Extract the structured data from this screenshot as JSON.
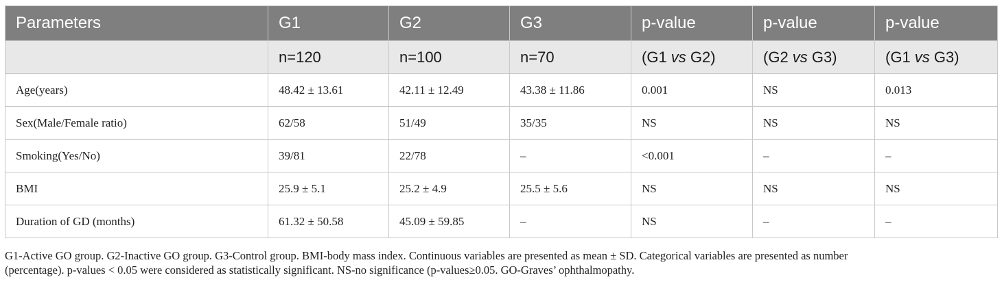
{
  "table": {
    "header_row1": [
      "Parameters",
      "G1",
      "G2",
      "G3",
      "p-value",
      "p-value",
      "p-value"
    ],
    "header_row2": [
      {
        "pre": "",
        "vs": "",
        "post": ""
      },
      {
        "pre": "n=120",
        "vs": "",
        "post": ""
      },
      {
        "pre": "n=100",
        "vs": "",
        "post": ""
      },
      {
        "pre": "n=70",
        "vs": "",
        "post": ""
      },
      {
        "pre": "(G1 ",
        "vs": "vs",
        "post": " G2)"
      },
      {
        "pre": "(G2 ",
        "vs": "vs",
        "post": " G3)"
      },
      {
        "pre": "(G1 ",
        "vs": "vs",
        "post": " G3)"
      }
    ],
    "rows": [
      [
        "Age(years)",
        "48.42 ± 13.61",
        "42.11 ± 12.49",
        "43.38 ± 11.86",
        "0.001",
        "NS",
        "0.013"
      ],
      [
        "Sex(Male/Female ratio)",
        "62/58",
        "51/49",
        "35/35",
        "NS",
        "NS",
        "NS"
      ],
      [
        "Smoking(Yes/No)",
        "39/81",
        "22/78",
        "–",
        "<0.001",
        "–",
        "–"
      ],
      [
        "BMI",
        "25.9 ± 5.1",
        "25.2 ± 4.9",
        "25.5 ± 5.6",
        "NS",
        "NS",
        "NS"
      ],
      [
        "Duration of GD (months)",
        "61.32 ± 50.58",
        "45.09 ± 59.85",
        "–",
        "NS",
        "–",
        "–"
      ]
    ]
  },
  "caption": {
    "line1": "G1-Active GO group. G2-Inactive GO group. G3-Control group. BMI-body mass index. Continuous variables are presented as mean ± SD. Categorical variables are presented as number",
    "line2": "(percentage). p-values < 0.05 were considered as statistically significant. NS-no significance (p-values≥0.05. GO-Graves’ ophthalmopathy."
  }
}
